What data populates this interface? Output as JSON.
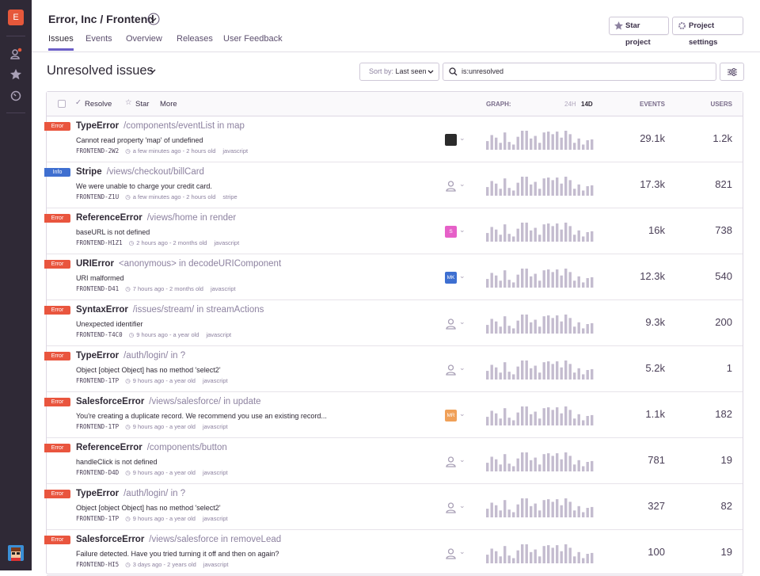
{
  "sidebar": {
    "org_initial": "E"
  },
  "header": {
    "title": "Error, Inc / Frontend",
    "tabs": [
      "Issues",
      "Events",
      "Overview",
      "Releases",
      "User Feedback"
    ],
    "active_tab": 0,
    "buttons": [
      "Star project",
      "Project settings"
    ]
  },
  "toolbar": {
    "heading": "Unresolved issues",
    "sort_label": "Sort by:",
    "sort_value": "Last seen",
    "search": "is:unresolved",
    "actions": [
      "Resolve",
      "Star",
      "More"
    ],
    "graph_label": "GRAPH:",
    "ranges": [
      "24H",
      "14D"
    ],
    "active_range": 1,
    "columns": [
      "EVENTS",
      "USERS"
    ]
  },
  "graph": [
    10,
    17,
    14,
    8,
    20,
    9,
    6,
    15,
    22,
    22,
    13,
    16,
    8,
    20,
    21,
    18,
    21,
    14,
    22,
    18,
    8,
    13,
    6,
    11,
    12
  ],
  "issues": [
    {
      "level": "Error",
      "title": "TypeError",
      "culprit": "/components/eventList in map",
      "message": "Cannot read property 'map' of undefined",
      "id": "FRONTEND-2W2",
      "age": "a few minutes ago - 2 hours old",
      "platform": "javascript",
      "assignee": {
        "color": "#2b2b2b"
      },
      "events": "29.1k",
      "users": "1.2k"
    },
    {
      "level": "Info",
      "title": "Stripe",
      "culprit": "/views/checkout/billCard",
      "message": "We were unable to charge your credit card.",
      "id": "FRONTEND-Z1U",
      "age": "a few minutes ago - 2 hours old",
      "platform": "stripe",
      "assignee": null,
      "events": "17.3k",
      "users": "821"
    },
    {
      "level": "Error",
      "title": "ReferenceError",
      "culprit": "/views/home in render",
      "message": "baseURL is not defined",
      "id": "FRONTEND-H1Z1",
      "age": "2 hours ago - 2 months old",
      "platform": "javascript",
      "assignee": {
        "initials": "S",
        "color": "#e660c8"
      },
      "events": "16k",
      "users": "738"
    },
    {
      "level": "Error",
      "title": "URIError",
      "culprit": "<anonymous> in decodeURIComponent",
      "message": "URI malformed",
      "id": "FRONTEND-D41",
      "age": "7 hours ago - 2 months old",
      "platform": "javascript",
      "assignee": {
        "initials": "MK",
        "color": "#3d6fd1"
      },
      "events": "12.3k",
      "users": "540"
    },
    {
      "level": "Error",
      "title": "SyntaxError",
      "culprit": "/issues/stream/ in streamActions",
      "message": "Unexpected identifier",
      "id": "FRONTEND-T4C0",
      "age": "9 hours ago - a year old",
      "platform": "javascript",
      "assignee": null,
      "events": "9.3k",
      "users": "200"
    },
    {
      "level": "Error",
      "title": "TypeError",
      "culprit": "/auth/login/ in ?",
      "message": "Object [object Object] has no method 'select2'",
      "id": "FRONTEND-1TP",
      "age": "9 hours ago - a year old",
      "platform": "javascript",
      "assignee": null,
      "events": "5.2k",
      "users": "1"
    },
    {
      "level": "Error",
      "title": "SalesforceError",
      "culprit": "/views/salesforce/ in update",
      "message": "You're creating a duplicate record. We recommend you use an existing record...",
      "id": "FRONTEND-1TP",
      "age": "9 hours ago - a year old",
      "platform": "javascript",
      "assignee": {
        "initials": "MR",
        "color": "#f0a058"
      },
      "events": "1.1k",
      "users": "182"
    },
    {
      "level": "Error",
      "title": "ReferenceError",
      "culprit": "/components/button",
      "message": "handleClick is not defined",
      "id": "FRONTEND-D4D",
      "age": "9 hours ago - a year old",
      "platform": "javascript",
      "assignee": null,
      "events": "781",
      "users": "19"
    },
    {
      "level": "Error",
      "title": "TypeError",
      "culprit": "/auth/login/ in ?",
      "message": "Object [object Object] has no method 'select2'",
      "id": "FRONTEND-1TP",
      "age": "9 hours ago - a year old",
      "platform": "javascript",
      "assignee": null,
      "events": "327",
      "users": "82"
    },
    {
      "level": "Error",
      "title": "SalesforceError",
      "culprit": "/views/salesforce in removeLead",
      "message": "Failure detected. Have you tried turning it off and then on again?",
      "id": "FRONTEND-HI5",
      "age": "3 days ago - 2 years old",
      "platform": "javascript",
      "assignee": null,
      "events": "100",
      "users": "19"
    }
  ]
}
